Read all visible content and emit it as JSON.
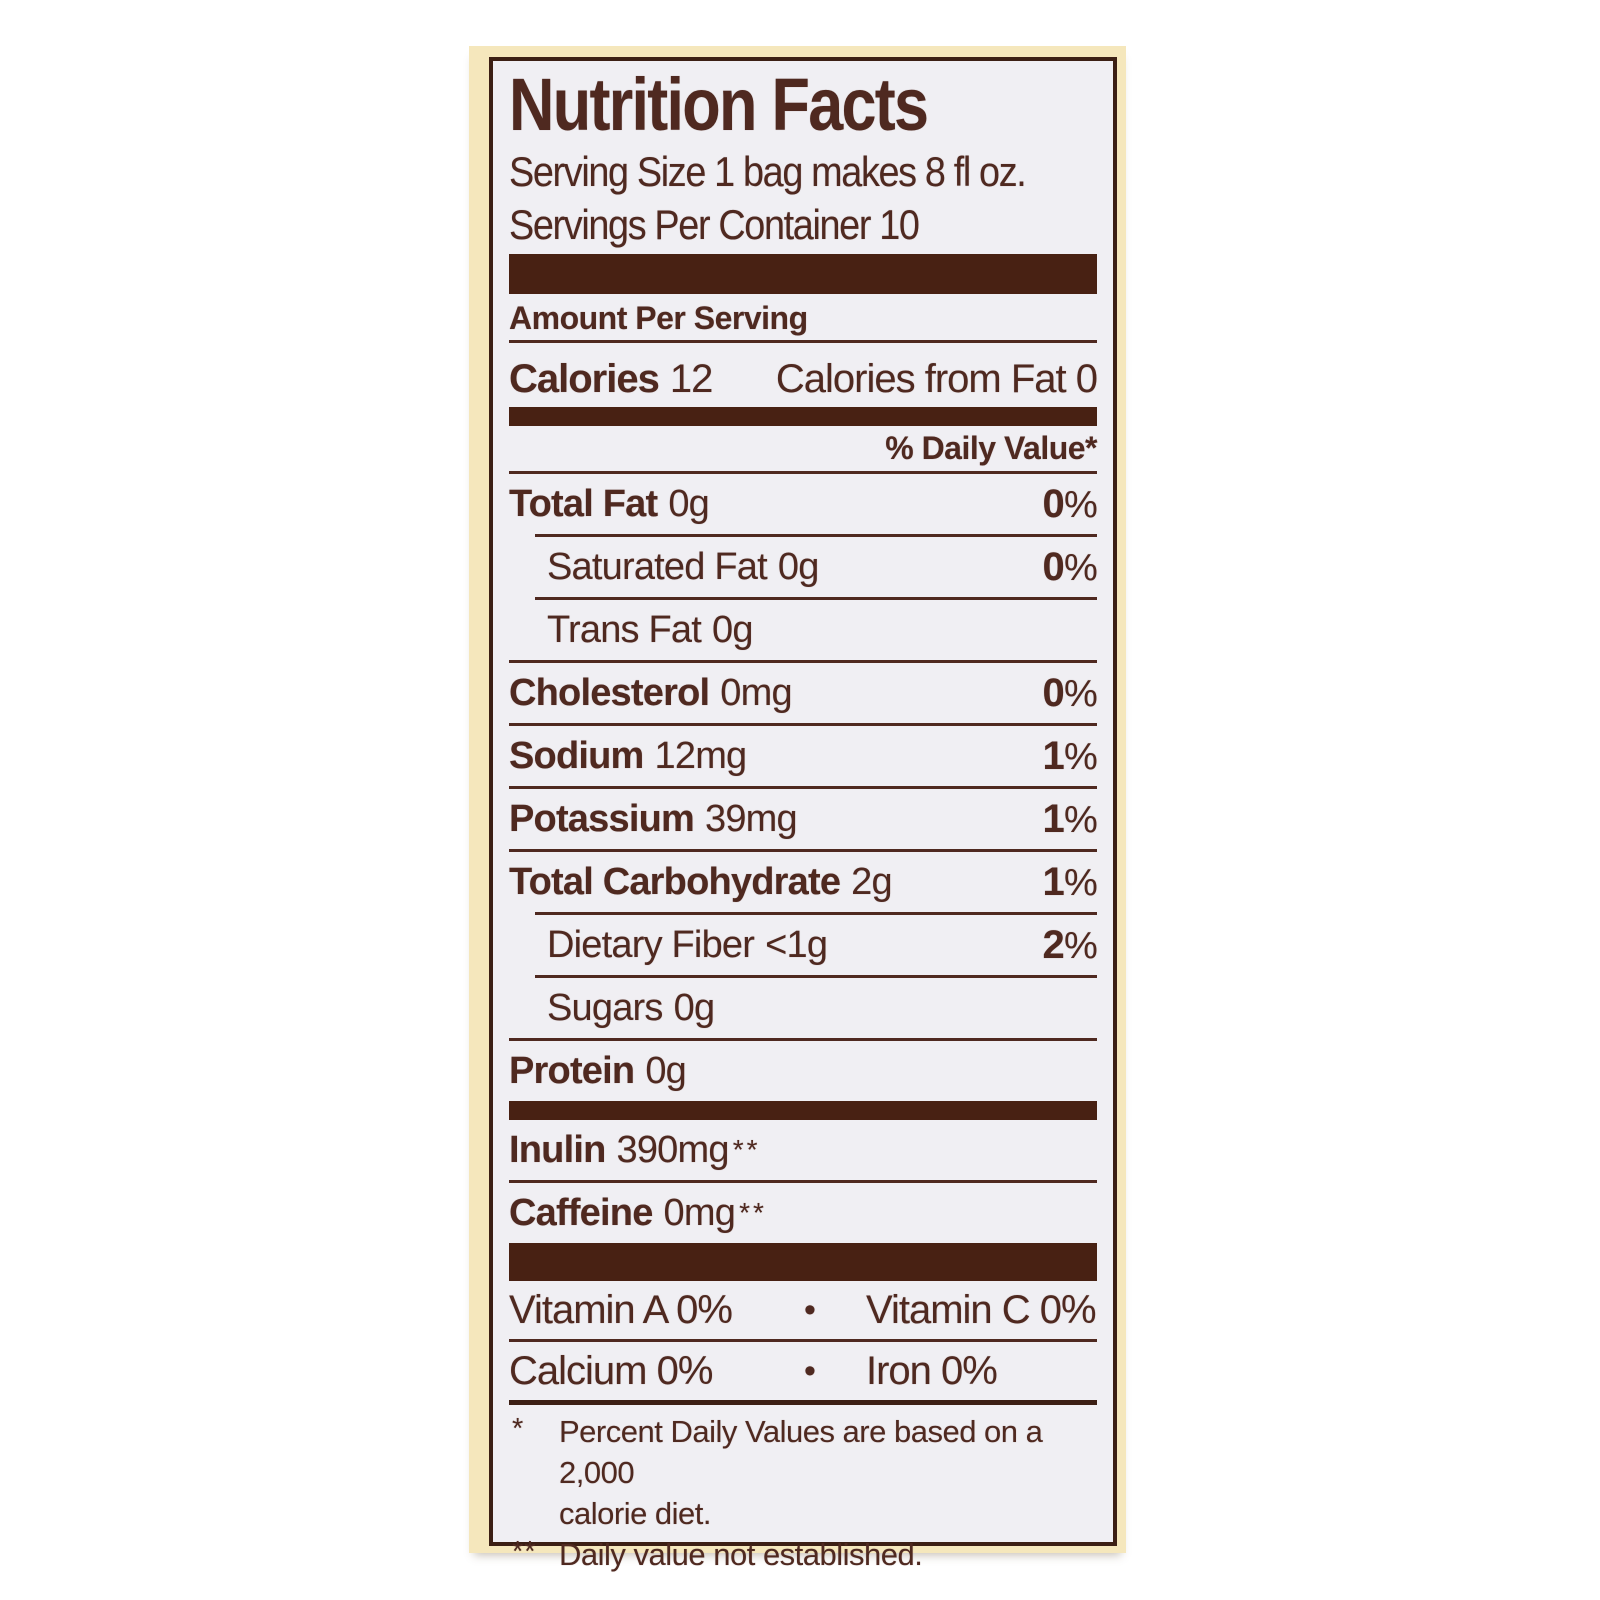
{
  "colors": {
    "text_brown": "#4f2920",
    "bar_brown": "#482113",
    "border_brown": "#3c1f14",
    "label_background": "#f0eff3",
    "package_cream": "#f5e7bc",
    "photo_background": "#ffffff"
  },
  "symbols": {
    "percent": "%"
  },
  "label": {
    "title": "Nutrition Facts",
    "serving_size": "Serving Size 1 bag makes 8 fl oz.",
    "servings_per_container": "Servings Per Container 10",
    "amount_per_serving": "Amount Per Serving",
    "calories": {
      "label": "Calories",
      "value": "12",
      "from_fat": "Calories from Fat 0"
    },
    "daily_value_header": "% Daily Value*",
    "nutrients": [
      {
        "name": "Total Fat",
        "amount": "0g",
        "dv_num": "0"
      },
      {
        "name": "Saturated Fat",
        "amount": "0g",
        "dv_num": "0"
      },
      {
        "name": "Trans Fat",
        "amount": "0g"
      },
      {
        "name": "Cholesterol",
        "amount": "0mg",
        "dv_num": "0"
      },
      {
        "name": "Sodium",
        "amount": "12mg",
        "dv_num": "1"
      },
      {
        "name": "Potassium",
        "amount": "39mg",
        "dv_num": "1"
      },
      {
        "name": "Total Carbohydrate",
        "amount": "2g",
        "dv_num": "1"
      },
      {
        "name": "Dietary Fiber",
        "amount": "<1g",
        "dv_num": "2"
      },
      {
        "name": "Sugars",
        "amount": "0g"
      },
      {
        "name": "Protein",
        "amount": "0g"
      }
    ],
    "supplements": [
      {
        "name": "Inulin",
        "value": "390mg",
        "note_mark": "**"
      },
      {
        "name": "Caffeine",
        "value": "0mg",
        "note_mark": "**"
      }
    ],
    "micronutrients": [
      {
        "left": "Vitamin A 0%",
        "separator": "•",
        "right": "Vitamin C 0%"
      },
      {
        "left": "Calcium 0%",
        "separator": "•",
        "right": "Iron 0%"
      }
    ],
    "footnotes": [
      {
        "mark": "*",
        "lines": [
          "Percent Daily Values are based on a 2,000",
          "calorie diet."
        ]
      },
      {
        "mark": "**",
        "text": "Daily value not established."
      }
    ]
  }
}
